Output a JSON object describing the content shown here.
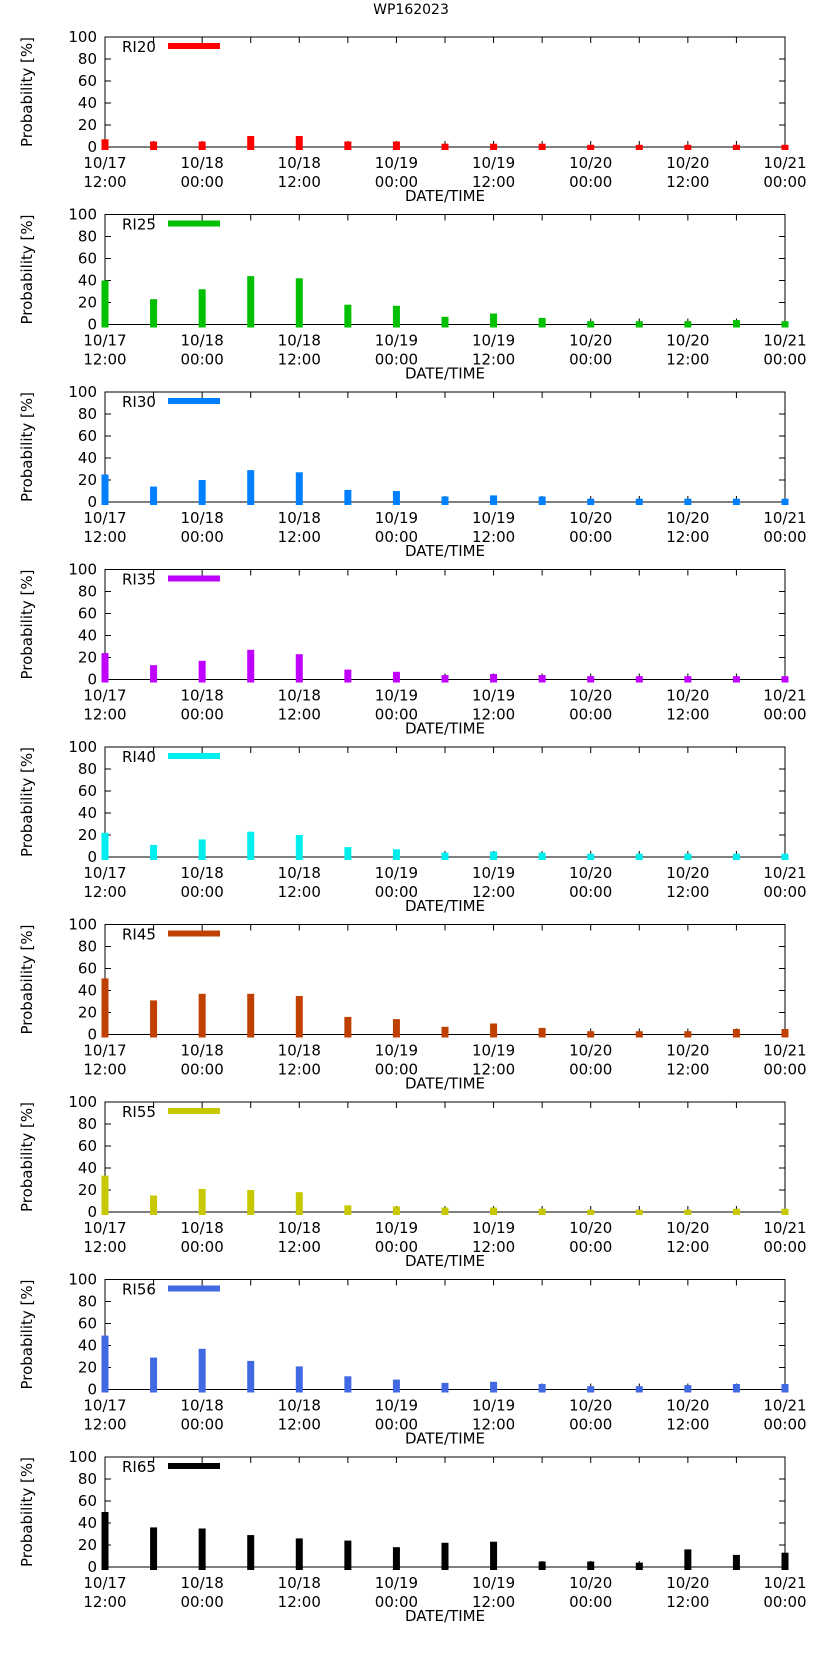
{
  "title": "WP162023",
  "chart_data": {
    "type": "bar",
    "ylabel": "Probability [%]",
    "xlabel": "DATE/TIME",
    "ylim": [
      0,
      100
    ],
    "yticks": [
      0,
      20,
      40,
      60,
      80,
      100
    ],
    "x_tick_labels": [
      [
        "10/17",
        "12:00"
      ],
      [
        "10/18",
        "00:00"
      ],
      [
        "10/18",
        "12:00"
      ],
      [
        "10/19",
        "00:00"
      ],
      [
        "10/19",
        "12:00"
      ],
      [
        "10/20",
        "00:00"
      ],
      [
        "10/20",
        "12:00"
      ],
      [
        "10/21",
        "00:00"
      ]
    ],
    "x_hours": [
      0,
      6,
      12,
      18,
      24,
      30,
      36,
      42,
      48,
      54,
      60,
      66,
      72,
      78,
      84
    ],
    "series": [
      {
        "name": "RI20",
        "color": "#ff0000",
        "values": [
          7,
          5,
          5,
          10,
          10,
          5,
          5,
          3,
          3,
          3,
          2,
          2,
          2,
          2,
          2
        ]
      },
      {
        "name": "RI25",
        "color": "#00c000",
        "values": [
          40,
          23,
          32,
          44,
          42,
          18,
          17,
          7,
          10,
          6,
          3,
          3,
          3,
          4,
          3
        ]
      },
      {
        "name": "RI30",
        "color": "#0080ff",
        "values": [
          25,
          14,
          20,
          29,
          27,
          11,
          10,
          5,
          6,
          5,
          3,
          3,
          3,
          3,
          3
        ]
      },
      {
        "name": "RI35",
        "color": "#c000ff",
        "values": [
          24,
          13,
          17,
          27,
          23,
          9,
          7,
          4,
          5,
          4,
          3,
          3,
          3,
          3,
          3
        ]
      },
      {
        "name": "RI40",
        "color": "#00eeee",
        "values": [
          22,
          11,
          16,
          23,
          20,
          9,
          7,
          4,
          5,
          4,
          3,
          3,
          3,
          3,
          3
        ]
      },
      {
        "name": "RI45",
        "color": "#c04000",
        "values": [
          51,
          31,
          37,
          37,
          35,
          16,
          14,
          7,
          10,
          6,
          3,
          3,
          3,
          5,
          5
        ]
      },
      {
        "name": "RI55",
        "color": "#c8c800",
        "values": [
          33,
          15,
          21,
          20,
          18,
          6,
          5,
          4,
          4,
          3,
          2,
          2,
          2,
          3,
          3
        ]
      },
      {
        "name": "RI56",
        "color": "#4169e1",
        "values": [
          49,
          29,
          37,
          26,
          21,
          12,
          9,
          6,
          7,
          5,
          3,
          3,
          4,
          5,
          5
        ]
      },
      {
        "name": "RI65",
        "color": "#000000",
        "values": [
          50,
          36,
          35,
          29,
          26,
          24,
          18,
          22,
          23,
          5,
          5,
          4,
          16,
          11,
          13
        ]
      }
    ]
  }
}
